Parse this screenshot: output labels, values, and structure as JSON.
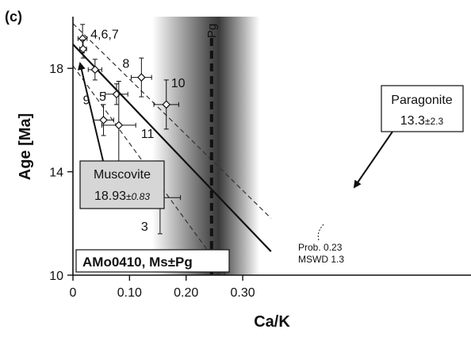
{
  "chart_data": {
    "type": "scatter",
    "panel_label": "(c)",
    "xlabel": "Ca/K",
    "ylabel": "Age [Ma]",
    "xlim": [
      0,
      0.35
    ],
    "ylim": [
      10,
      20
    ],
    "xticks": [
      0,
      0.1,
      0.2,
      0.3
    ],
    "xtick_labels": [
      "0",
      "0.10",
      "0.20",
      "0.30"
    ],
    "yticks": [
      10,
      14,
      18
    ],
    "ytick_labels": [
      "10",
      "14",
      "18"
    ],
    "points": [
      {
        "label": "4,6,7",
        "x": 0.017,
        "y": 19.15,
        "xerr": 0.008,
        "yerr": 0.55
      },
      {
        "label": "",
        "x": 0.018,
        "y": 18.75,
        "xerr": 0.006,
        "yerr": 0.35
      },
      {
        "label": "",
        "x": 0.039,
        "y": 17.95,
        "xerr": 0.012,
        "yerr": 0.4
      },
      {
        "label": "5",
        "x": 0.077,
        "y": 17.0,
        "xerr": 0.02,
        "yerr": 0.4
      },
      {
        "label": "9",
        "x": 0.054,
        "y": 16.0,
        "xerr": 0.018,
        "yerr": 0.6
      },
      {
        "label": "11",
        "x": 0.081,
        "y": 15.8,
        "xerr": 0.03,
        "yerr": 1.7
      },
      {
        "label": "8",
        "x": 0.121,
        "y": 17.65,
        "xerr": 0.018,
        "yerr": 0.75
      },
      {
        "label": "10",
        "x": 0.165,
        "y": 16.6,
        "xerr": 0.022,
        "yerr": 0.95
      },
      {
        "label": "3",
        "x": 0.154,
        "y": 13.0,
        "xerr": 0.036,
        "yerr": 1.4
      }
    ],
    "regression": {
      "intercept": 18.93,
      "slope": -22.9
    },
    "envelope_upper": {
      "y_at_0": 19.75,
      "y_at_max": 12.2
    },
    "envelope_lower": {
      "y_at_0": 18.1,
      "x_at_10": 0.27
    },
    "paragonite_line": {
      "label": "Pg",
      "x": 0.245
    },
    "shading": {
      "x_start": 0.14,
      "x_end": 0.33
    },
    "annotations": {
      "muscovite": {
        "name": "Muscovite",
        "value": "18.93",
        "err": "±0.83"
      },
      "paragonite": {
        "name": "Paragonite",
        "value": "13.3",
        "err": "±2.3"
      },
      "stats": {
        "prob": "Prob. 0.23",
        "mswd": "MSWD 1.3"
      },
      "sample": "AMo0410, Ms±Pg"
    }
  }
}
